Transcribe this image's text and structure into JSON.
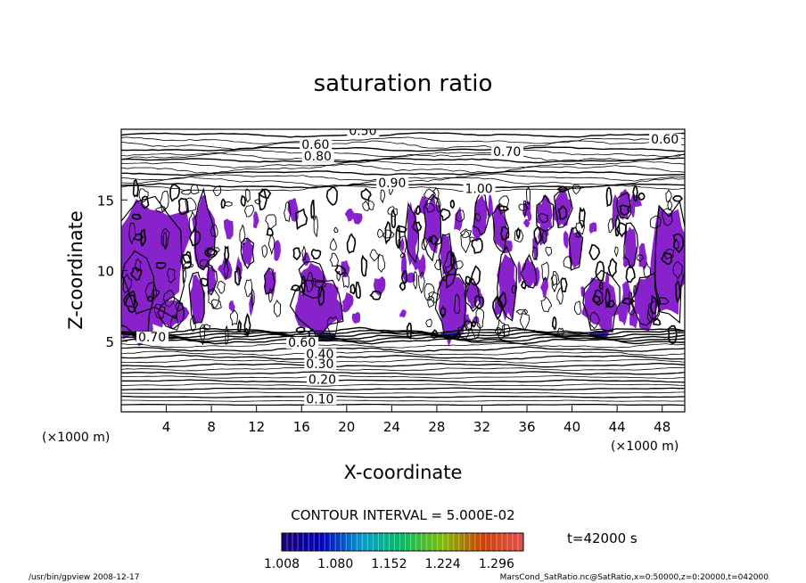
{
  "chart_data": {
    "type": "contour",
    "title": "saturation ratio",
    "xlabel": "X-coordinate",
    "ylabel": "Z-coordinate",
    "x_unit_label": "(×1000 m)",
    "y_unit_label": "(×1000 m)",
    "xlim": [
      0,
      50
    ],
    "ylim": [
      0,
      20
    ],
    "x_ticks": [
      "4",
      "8",
      "12",
      "16",
      "20",
      "24",
      "28",
      "32",
      "36",
      "40",
      "44",
      "48"
    ],
    "y_ticks": [
      "5",
      "10",
      "15"
    ],
    "contour_interval_text": "CONTOUR INTERVAL = 5.000E-02",
    "time_text": "t=42000 s",
    "colorbar": {
      "range": [
        1.008,
        1.332
      ],
      "labels": [
        "1.008",
        "1.080",
        "1.152",
        "1.224",
        "1.296"
      ],
      "colors": [
        "#1a0070",
        "#0000c0",
        "#00a0d0",
        "#00c060",
        "#80c000",
        "#d04000",
        "#e05050"
      ]
    },
    "fill_color": "#8822cc",
    "contour_labels": [
      {
        "text": "0.50",
        "x": 20.2,
        "z": 19.6
      },
      {
        "text": "0.60",
        "x": 47.0,
        "z": 19.0
      },
      {
        "text": "0.60",
        "x": 16.0,
        "z": 18.6
      },
      {
        "text": "0.80",
        "x": 16.2,
        "z": 17.8
      },
      {
        "text": "0.70",
        "x": 33.0,
        "z": 18.1
      },
      {
        "text": "0.90",
        "x": 22.8,
        "z": 15.9
      },
      {
        "text": "1.00",
        "x": 30.5,
        "z": 15.5
      },
      {
        "text": "0.70",
        "x": 1.5,
        "z": 5.0
      },
      {
        "text": "0.60",
        "x": 14.8,
        "z": 4.6
      },
      {
        "text": "0.40",
        "x": 16.4,
        "z": 3.8
      },
      {
        "text": "0.30",
        "x": 16.4,
        "z": 3.1
      },
      {
        "text": "0.20",
        "x": 16.6,
        "z": 2.0
      },
      {
        "text": "0.10",
        "x": 16.4,
        "z": 0.6
      }
    ],
    "footer_left": "/usr/bin/gpview  2008-12-17",
    "footer_right": "MarsCond_SatRatio.nc@SatRatio,x=0:50000,z=0:20000,t=042000"
  }
}
